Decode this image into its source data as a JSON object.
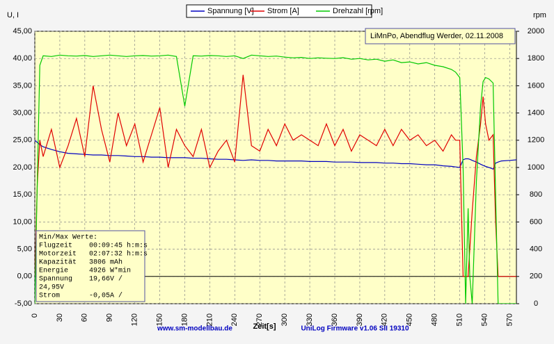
{
  "chart_data": {
    "type": "line",
    "y_label": "U, I",
    "y2_label": "rpm",
    "x_label": "Zeit[s]",
    "annotation": "LiMnPo, Abendflug Werder, 02.11.2008",
    "footer_left": "www.sm-modellbau.de",
    "footer_right": "UniLog Firmware v1.06 SII 19310",
    "info_box": {
      "title": "Min/Max Werte:",
      "lines": [
        "Flugzeit    00:09:45 h:m:s",
        "Motorzeit   02:07:32 h:m:s",
        "Kapazität   3806 mAh",
        "Energie     4926 W*min",
        "Spannung    19,66V /",
        "24,95V",
        "Strom       -0,05A /"
      ]
    },
    "grid": true,
    "plot_color": "#ffffc8",
    "x": [
      0,
      3,
      6,
      10,
      20,
      30,
      40,
      50,
      60,
      70,
      80,
      90,
      100,
      110,
      120,
      130,
      140,
      150,
      160,
      170,
      180,
      190,
      200,
      210,
      220,
      230,
      240,
      250,
      260,
      270,
      280,
      290,
      300,
      310,
      320,
      330,
      340,
      350,
      360,
      370,
      380,
      390,
      400,
      410,
      420,
      430,
      440,
      450,
      460,
      470,
      480,
      490,
      500,
      505,
      510,
      514,
      517,
      520,
      522,
      525,
      530,
      535,
      538,
      541,
      545,
      550,
      553,
      556,
      560,
      570,
      578
    ],
    "series": [
      {
        "name": "Spannung [V]",
        "color": "#0000c0",
        "axis": "y",
        "values": [
          24.95,
          24.6,
          24.2,
          23.8,
          23.3,
          22.9,
          22.6,
          22.5,
          22.4,
          22.3,
          22.3,
          22.2,
          22.2,
          22.1,
          22.0,
          22.0,
          21.9,
          21.9,
          21.8,
          21.8,
          21.8,
          21.7,
          21.7,
          21.6,
          21.5,
          21.5,
          21.4,
          21.3,
          21.4,
          21.3,
          21.3,
          21.2,
          21.2,
          21.2,
          21.2,
          21.1,
          21.1,
          21.1,
          21.0,
          21.0,
          21.0,
          20.9,
          20.9,
          20.9,
          20.8,
          20.8,
          20.7,
          20.7,
          20.6,
          20.5,
          20.5,
          20.3,
          20.2,
          20.1,
          20.0,
          21.4,
          21.6,
          21.6,
          21.5,
          21.3,
          21.0,
          20.6,
          20.4,
          20.2,
          20.0,
          19.7,
          20.8,
          21.0,
          21.2,
          21.3,
          21.4
        ]
      },
      {
        "name": "Strom [A]",
        "color": "#e00000",
        "axis": "y",
        "values": [
          0,
          17,
          25,
          22,
          27,
          20,
          24,
          29,
          22,
          35,
          27,
          21,
          30,
          24,
          28,
          21,
          26,
          31,
          20,
          27,
          24,
          22,
          27,
          20,
          23,
          25,
          21,
          37,
          24,
          23,
          27,
          24,
          28,
          25,
          26,
          25,
          24,
          28,
          24,
          27,
          23,
          26,
          25,
          24,
          27,
          24,
          27,
          25,
          26,
          24,
          25,
          23,
          26,
          25,
          25,
          0,
          0,
          0,
          5,
          12,
          22,
          28,
          33,
          28,
          25,
          26,
          10,
          0,
          0,
          0,
          0
        ]
      },
      {
        "name": "Drehzahl [rpm]",
        "color": "#00c800",
        "axis": "y2",
        "values": [
          0,
          900,
          1750,
          1820,
          1815,
          1825,
          1820,
          1818,
          1822,
          1815,
          1820,
          1825,
          1820,
          1815,
          1820,
          1822,
          1818,
          1820,
          1825,
          1815,
          1450,
          1820,
          1818,
          1822,
          1820,
          1815,
          1820,
          1800,
          1825,
          1820,
          1815,
          1818,
          1810,
          1805,
          1808,
          1800,
          1805,
          1802,
          1800,
          1806,
          1795,
          1800,
          1790,
          1795,
          1780,
          1790,
          1770,
          1775,
          1760,
          1770,
          1750,
          1740,
          1720,
          1700,
          1660,
          1000,
          0,
          700,
          200,
          0,
          900,
          1450,
          1630,
          1660,
          1650,
          1620,
          800,
          0,
          0,
          0,
          0
        ]
      }
    ],
    "xlim": [
      0,
      578
    ],
    "xticks": [
      0,
      30,
      60,
      90,
      120,
      150,
      180,
      210,
      240,
      270,
      300,
      330,
      360,
      390,
      420,
      450,
      480,
      510,
      540,
      570
    ],
    "ylim": [
      -5,
      45
    ],
    "yticks": [
      {
        "value": -5,
        "label": "-5,00"
      },
      {
        "value": 0,
        "label": "0,00"
      },
      {
        "value": 5,
        "label": "5,00"
      },
      {
        "value": 10,
        "label": "10,00"
      },
      {
        "value": 15,
        "label": "15,00"
      },
      {
        "value": 20,
        "label": "20,00"
      },
      {
        "value": 25,
        "label": "25,00"
      },
      {
        "value": 30,
        "label": "30,00"
      },
      {
        "value": 35,
        "label": "35,00"
      },
      {
        "value": 40,
        "label": "40,00"
      },
      {
        "value": 45,
        "label": "45,00"
      }
    ],
    "y2lim": [
      0,
      2000
    ],
    "y2ticks": [
      0,
      200,
      400,
      600,
      800,
      1000,
      1200,
      1400,
      1600,
      1800,
      2000
    ]
  }
}
